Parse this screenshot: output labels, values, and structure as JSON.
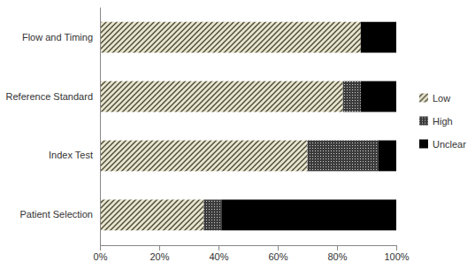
{
  "chart_data": {
    "type": "bar",
    "orientation": "horizontal",
    "stacked": true,
    "legend": "right",
    "categories": [
      "Flow and Timing",
      "Reference Standard",
      "Index Test",
      "Patient Selection"
    ],
    "series": [
      {
        "name": "Low",
        "color": "#e8e4cc",
        "values": [
          88,
          82,
          70,
          35
        ]
      },
      {
        "name": "High",
        "color": "#3c3c3c",
        "values": [
          0,
          6,
          24,
          6
        ]
      },
      {
        "name": "Unclear",
        "color": "#000000",
        "values": [
          12,
          12,
          6,
          59
        ]
      }
    ],
    "xlim": [
      0,
      100
    ],
    "xticks": [
      {
        "value": 0,
        "label": "0%"
      },
      {
        "value": 20,
        "label": "20%"
      },
      {
        "value": 40,
        "label": "40%"
      },
      {
        "value": 60,
        "label": "60%"
      },
      {
        "value": 80,
        "label": "80%"
      },
      {
        "value": 100,
        "label": "100%"
      }
    ]
  }
}
